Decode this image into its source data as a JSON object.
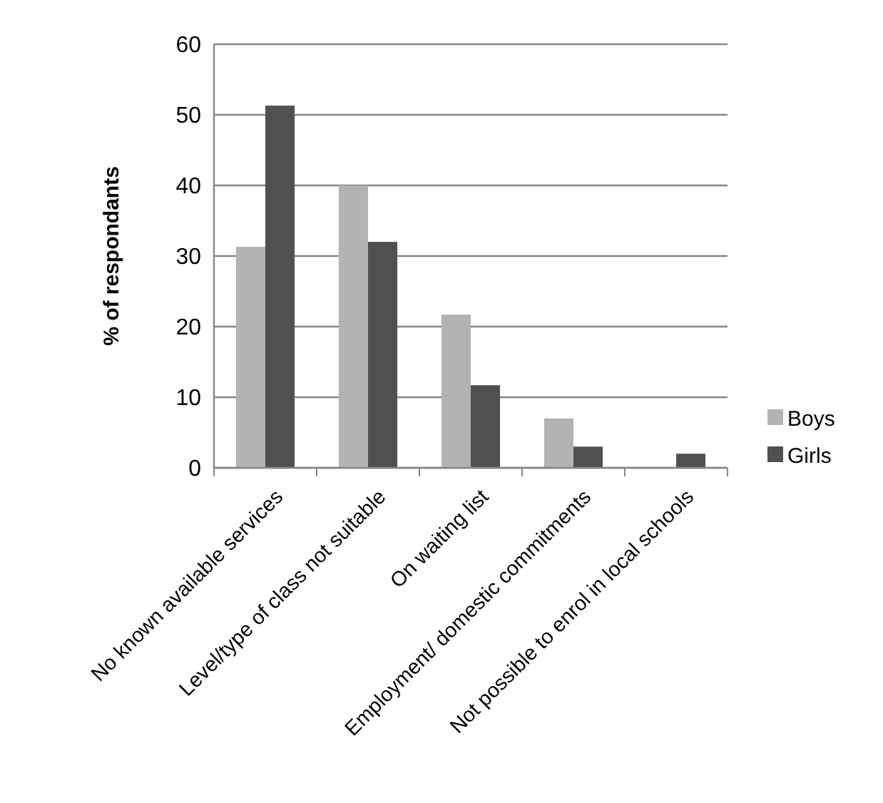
{
  "chart_data": {
    "type": "bar",
    "ylabel": "% of respondants",
    "categories": [
      "No known available services",
      "Level/type of class not suitable",
      "On waiting list",
      "Employment/ domestic commitments",
      "Not possible to enrol in local schools"
    ],
    "series": [
      {
        "name": "Boys",
        "color": "#b3b3b3",
        "values": [
          31.3,
          40,
          21.7,
          7,
          0
        ]
      },
      {
        "name": "Girls",
        "color": "#505050",
        "values": [
          51.3,
          32,
          11.7,
          3,
          2
        ]
      }
    ],
    "ylim": [
      0,
      60
    ],
    "yticks": [
      0,
      10,
      20,
      30,
      40,
      50,
      60
    ],
    "grid": "y",
    "legend": "right"
  }
}
